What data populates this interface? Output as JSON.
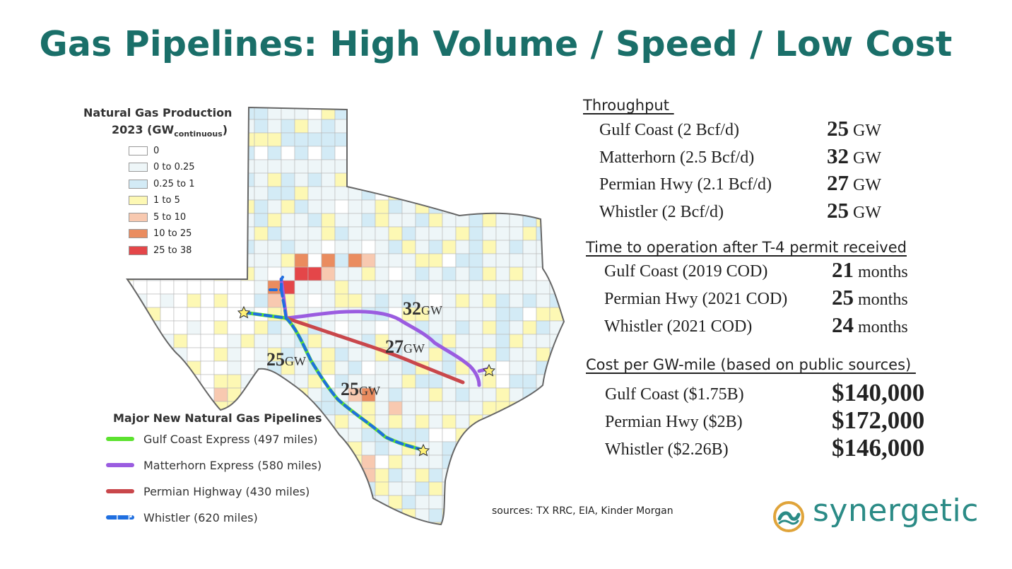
{
  "title": "Gas Pipelines: High Volume / Speed / Low Cost",
  "legend": {
    "title_line1": "Natural Gas Production",
    "title_line2": "2023 (GW",
    "title_sub": "continuous",
    "title_close": ")",
    "items": [
      {
        "label": "0",
        "color": "#ffffff"
      },
      {
        "label": "0 to 0.25",
        "color": "#eef6f8"
      },
      {
        "label": "0.25 to 1",
        "color": "#d3ebf6"
      },
      {
        "label": "1 to 5",
        "color": "#fdf8b4"
      },
      {
        "label": "5 to 10",
        "color": "#f8c9b0"
      },
      {
        "label": "10 to 25",
        "color": "#ea8c5f"
      },
      {
        "label": "25 to 38",
        "color": "#e44649"
      }
    ]
  },
  "pipelines": {
    "title": "Major New Natural Gas Pipelines",
    "items": [
      {
        "label": "Gulf Coast Express (497 miles)",
        "color": "#5ce22f",
        "style": "solid"
      },
      {
        "label": "Matterhorn Express (580 miles)",
        "color": "#9a5ce0",
        "style": "solid"
      },
      {
        "label": "Permian Highway (430 miles)",
        "color": "#c9474b",
        "style": "solid"
      },
      {
        "label": "Whistler (620 miles)",
        "color": "#1f6fe0",
        "style": "dashed"
      }
    ]
  },
  "map_labels": [
    {
      "value": "32",
      "unit": "GW"
    },
    {
      "value": "27",
      "unit": "GW"
    },
    {
      "value": "25",
      "unit": "GW"
    },
    {
      "value": "25",
      "unit": "GW"
    }
  ],
  "throughput": {
    "heading": "Throughput ",
    "rows": [
      {
        "label": "Gulf Coast (2 Bcf/d)",
        "value": "25",
        "unit": "GW"
      },
      {
        "label": "Matterhorn (2.5 Bcf/d)",
        "value": "32",
        "unit": "GW"
      },
      {
        "label": "Permian Hwy (2.1 Bcf/d)",
        "value": "27",
        "unit": "GW"
      },
      {
        "label": "Whistler (2 Bcf/d)",
        "value": "25",
        "unit": "GW"
      }
    ]
  },
  "time_to_operation": {
    "heading": "Time to operation after T-4 permit received",
    "rows": [
      {
        "label": "Gulf Coast (2019 COD)",
        "value": "21",
        "unit": "months"
      },
      {
        "label": "Permian Hwy (2021 COD)",
        "value": "25",
        "unit": "months"
      },
      {
        "label": "Whistler (2021 COD)",
        "value": "24",
        "unit": "months"
      }
    ]
  },
  "cost": {
    "heading": "Cost per GW-mile (based on public sources) ",
    "rows": [
      {
        "label": "Gulf Coast ($1.75B)",
        "value": "$140,000"
      },
      {
        "label": "Permian Hwy ($2B)",
        "value": "$172,000"
      },
      {
        "label": "Whistler ($2.26B)",
        "value": "$146,000"
      }
    ]
  },
  "sources": "sources: TX RRC, EIA, Kinder Morgan",
  "logo": {
    "text": "synergetic",
    "icon": "synergetic-logo-icon",
    "color": "#2b8b86",
    "accent": "#e0a43a"
  }
}
